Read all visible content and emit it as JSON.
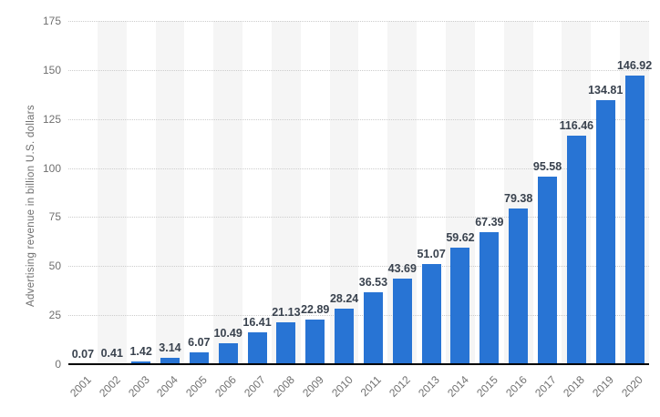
{
  "chart_data": {
    "type": "bar",
    "title": "",
    "xlabel": "",
    "ylabel": "Advertising revenue in billion U.S. dollars",
    "categories": [
      "2001",
      "2002",
      "2003",
      "2004",
      "2005",
      "2006",
      "2007",
      "2008",
      "2009",
      "2010",
      "2011",
      "2012",
      "2013",
      "2014",
      "2015",
      "2016",
      "2017",
      "2018",
      "2019",
      "2020"
    ],
    "values": [
      0.07,
      0.41,
      1.42,
      3.14,
      6.07,
      10.49,
      16.41,
      21.13,
      22.89,
      28.24,
      36.53,
      43.69,
      51.07,
      59.62,
      67.39,
      79.38,
      95.58,
      116.46,
      134.81,
      146.92
    ],
    "value_labels": [
      "0.07",
      "0.41",
      "1.42",
      "3.14",
      "6.07",
      "10.49",
      "16.41",
      "21.13",
      "22.89",
      "28.24",
      "36.53",
      "43.69",
      "51.07",
      "59.62",
      "67.39",
      "79.38",
      "95.58",
      "116.46",
      "134.81",
      "146.92"
    ],
    "ylim": [
      0,
      175
    ],
    "yticks": [
      0,
      25,
      50,
      75,
      100,
      125,
      150,
      175
    ],
    "ytick_labels": [
      "0",
      "25",
      "50",
      "75",
      "100",
      "125",
      "150",
      "175"
    ],
    "grid": "horizontal-dotted",
    "legend": "none",
    "bar_color": "#2874d4",
    "stripe_color": "#f5f5f5",
    "gridline_color": "#cccccc",
    "axis_text_color": "#707070",
    "value_text_color": "#39424e"
  }
}
